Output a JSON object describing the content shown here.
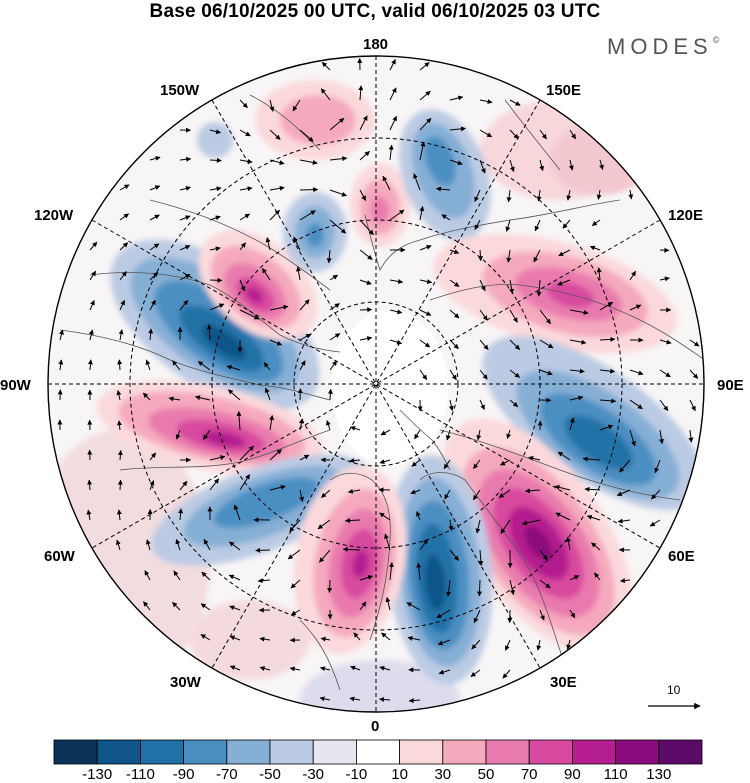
{
  "title": "Base 06/10/2025 00 UTC, valid 06/10/2025 03 UTC",
  "logo": {
    "text": "MODES",
    "mark": "©"
  },
  "map": {
    "projection": "north-polar-stereographic",
    "longitude_labels": {
      "top": "180",
      "top_left": "150W",
      "top_right": "150E",
      "upper_left": "120W",
      "upper_right": "120E",
      "left": "90W",
      "right": "90E",
      "lower_left": "60W",
      "lower_right": "60E",
      "bottom_left": "30W",
      "bottom_right": "30E",
      "bottom": "0"
    }
  },
  "reference_vector": {
    "label": "10"
  },
  "colorbar": {
    "ticks": [
      "-130",
      "-110",
      "-90",
      "-70",
      "-50",
      "-30",
      "-10",
      "10",
      "30",
      "50",
      "70",
      "90",
      "110",
      "130"
    ],
    "colors": [
      "#0c3358",
      "#10558a",
      "#2272a8",
      "#4b8fc2",
      "#86afd6",
      "#bccbe4",
      "#e6e6f0",
      "#ffffff",
      "#fbd9db",
      "#f5a9bd",
      "#e97aae",
      "#d84a9f",
      "#b41e8e",
      "#8b0a7c",
      "#5c0a68"
    ]
  },
  "colors": {
    "ring": "#000000",
    "land": "#555555"
  }
}
